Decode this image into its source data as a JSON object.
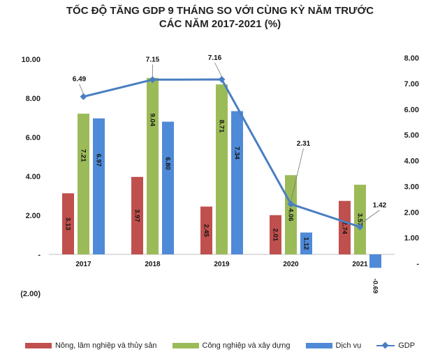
{
  "title_lines": [
    "TỐC ĐỘ TĂNG GDP 9 THÁNG SO VỚI CÙNG KỲ NĂM TRƯỚC",
    "CÁC NĂM 2017-2021 (%)"
  ],
  "colors": {
    "agri": "#c0504d",
    "industry": "#9bbb59",
    "services": "#4f8ad8",
    "gdp": "#4a7ec2"
  },
  "chart_data": {
    "type": "bar",
    "title": "TỐC ĐỘ TĂNG GDP 9 THÁNG SO VỚI CÙNG KỲ NĂM TRƯỚC CÁC NĂM 2017-2021 (%)",
    "categories": [
      "2017",
      "2018",
      "2019",
      "2020",
      "2021"
    ],
    "series": [
      {
        "name": "Nông, lâm nghiệp và thủy sản",
        "type": "bar",
        "axis": "left",
        "values": [
          3.13,
          3.97,
          2.45,
          2.01,
          2.74
        ],
        "labels": [
          "3.13",
          "3.97",
          "2.45",
          "2.01",
          "2.74"
        ]
      },
      {
        "name": "Công nghiệp và xây dựng",
        "type": "bar",
        "axis": "left",
        "values": [
          7.21,
          9.04,
          8.71,
          4.06,
          3.57
        ],
        "labels": [
          "7.21",
          "9.04",
          "8.71",
          "4.06",
          "3.57"
        ]
      },
      {
        "name": "Dịch vụ",
        "type": "bar",
        "axis": "left",
        "values": [
          6.97,
          6.8,
          7.34,
          1.12,
          -0.69
        ],
        "labels": [
          "6.97",
          "6.80",
          "7.34",
          "1.12",
          "-0.69"
        ]
      },
      {
        "name": "GDP",
        "type": "line",
        "axis": "right",
        "values": [
          6.49,
          7.15,
          7.16,
          2.31,
          1.42
        ],
        "labels": [
          "6.49",
          "7.15",
          "7.16",
          "2.31",
          "1.42"
        ]
      }
    ],
    "left_axis": {
      "ylim": [
        -2,
        10
      ],
      "ticks": [
        "(2.00)",
        "-",
        "2.00",
        "4.00",
        "6.00",
        "8.00",
        "10.00"
      ]
    },
    "right_axis": {
      "ylim": [
        0,
        8
      ],
      "ticks": [
        "-",
        "1.00",
        "2.00",
        "3.00",
        "4.00",
        "5.00",
        "6.00",
        "7.00",
        "8.00"
      ]
    },
    "grid": false,
    "legend": "bottom"
  }
}
